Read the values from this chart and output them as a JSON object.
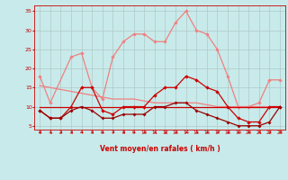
{
  "x": [
    0,
    1,
    2,
    3,
    4,
    5,
    6,
    7,
    8,
    9,
    10,
    11,
    12,
    13,
    14,
    15,
    16,
    17,
    18,
    19,
    20,
    21,
    22,
    23
  ],
  "line_rafales": [
    18,
    11,
    null,
    23,
    24,
    15,
    12,
    23,
    27,
    29,
    29,
    27,
    27,
    32,
    35,
    30,
    29,
    25,
    18,
    10,
    10,
    11,
    17,
    17
  ],
  "line_trend": [
    15.5,
    15,
    14.5,
    14,
    13.5,
    13,
    12.5,
    12,
    12,
    12,
    11.5,
    11,
    11,
    11,
    11,
    11,
    10.5,
    10,
    10,
    10,
    10,
    10,
    10,
    10
  ],
  "line_moy": [
    9,
    7,
    7,
    10,
    15,
    15,
    9,
    8,
    10,
    10,
    10,
    13,
    15,
    15,
    18,
    17,
    15,
    14,
    10,
    7,
    6,
    6,
    10,
    10
  ],
  "line_min": [
    9,
    7,
    7,
    9,
    10,
    9,
    7,
    7,
    8,
    8,
    8,
    10,
    10,
    11,
    11,
    9,
    8,
    7,
    6,
    5,
    5,
    5,
    6,
    10
  ],
  "line_flat": [
    10,
    10,
    10,
    10,
    10,
    10,
    10,
    10,
    10,
    10,
    10,
    10,
    10,
    10,
    10,
    10,
    10,
    10,
    10,
    10,
    10,
    10,
    10,
    10
  ],
  "color_rafales": "#f08080",
  "color_trend": "#f08080",
  "color_moy": "#cc0000",
  "color_min": "#990000",
  "color_flat": "#cc0000",
  "bg_color": "#c8eaea",
  "grid_color": "#b0c8c8",
  "xlabel": "Vent moyen/en rafales ( km/h )",
  "ylim": [
    4.0,
    36.5
  ],
  "yticks": [
    5,
    10,
    15,
    20,
    25,
    30,
    35
  ],
  "xlim": [
    -0.5,
    23.5
  ],
  "arrow_color": "#cc0000"
}
